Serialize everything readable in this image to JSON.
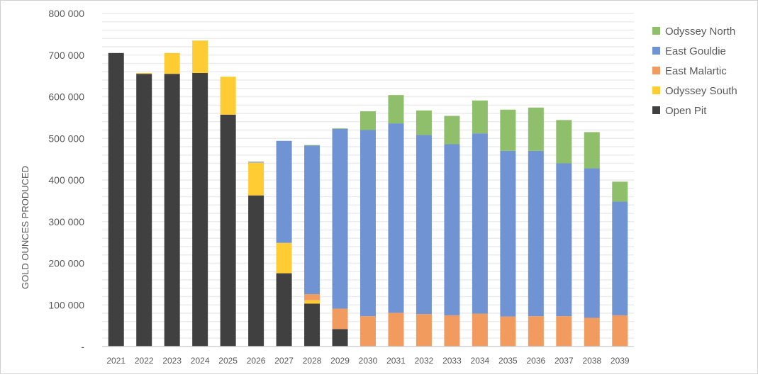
{
  "chart_data": {
    "type": "bar",
    "stacked": true,
    "title": "",
    "xlabel": "",
    "ylabel": "GOLD OUNCES PRODUCED",
    "ylim": [
      0,
      800000
    ],
    "yticks": [
      0,
      100000,
      200000,
      300000,
      400000,
      500000,
      600000,
      700000,
      800000
    ],
    "ytick_labels": [
      "-",
      "100 000",
      "200 000",
      "300 000",
      "400 000",
      "500 000",
      "600 000",
      "700 000",
      "800 000"
    ],
    "grid": true,
    "legend_position": "right",
    "categories": [
      "2021",
      "2022",
      "2023",
      "2024",
      "2025",
      "2026",
      "2027",
      "2028",
      "2029",
      "2030",
      "2031",
      "2032",
      "2033",
      "2034",
      "2035",
      "2036",
      "2037",
      "2038",
      "2039"
    ],
    "series": [
      {
        "name": "Open Pit",
        "color": "#404040",
        "values": [
          705000,
          655000,
          655000,
          657000,
          557000,
          363000,
          176000,
          103000,
          42000,
          0,
          0,
          0,
          0,
          0,
          0,
          0,
          0,
          0,
          0
        ]
      },
      {
        "name": "Odyssey South",
        "color": "#ffcc33",
        "values": [
          0,
          2000,
          50000,
          78000,
          91000,
          79000,
          73000,
          8000,
          0,
          0,
          0,
          0,
          0,
          0,
          0,
          0,
          0,
          0,
          0
        ]
      },
      {
        "name": "East Malartic",
        "color": "#f19b5e",
        "values": [
          0,
          0,
          0,
          0,
          0,
          0,
          0,
          15000,
          49000,
          73000,
          81000,
          78000,
          75000,
          79000,
          72000,
          73000,
          73000,
          69000,
          75000
        ]
      },
      {
        "name": "East Gouldie",
        "color": "#6f93d3",
        "values": [
          0,
          0,
          0,
          0,
          0,
          2000,
          245000,
          357000,
          432000,
          447000,
          455000,
          430000,
          411000,
          433000,
          398000,
          397000,
          367000,
          359000,
          273000
        ]
      },
      {
        "name": "Odyssey North",
        "color": "#8fbf6b",
        "values": [
          0,
          0,
          0,
          0,
          0,
          0,
          0,
          1000,
          1000,
          45000,
          68000,
          59000,
          68000,
          79000,
          99000,
          104000,
          104000,
          87000,
          48000
        ]
      }
    ],
    "legend_order": [
      "Odyssey North",
      "East Gouldie",
      "East Malartic",
      "Odyssey South",
      "Open Pit"
    ]
  }
}
